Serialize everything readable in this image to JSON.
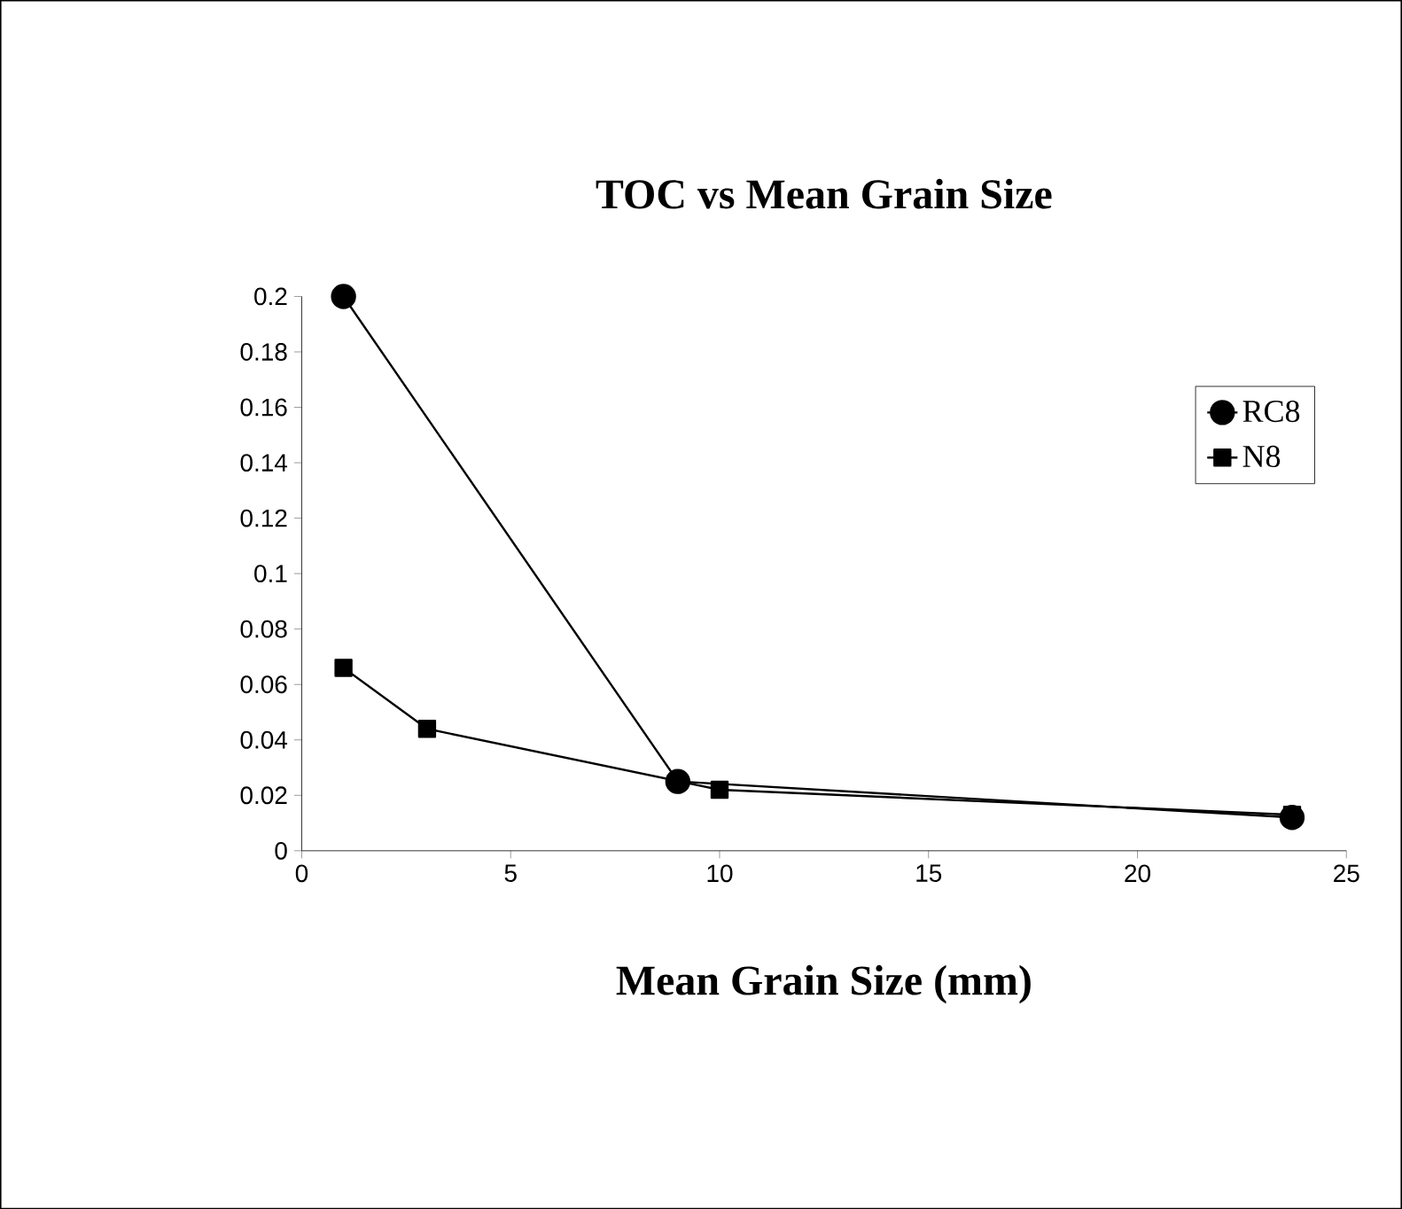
{
  "chart_data": {
    "type": "line",
    "title": "TOC vs Mean Grain Size",
    "xlabel": "Mean Grain Size (mm)",
    "xlim": [
      0,
      25
    ],
    "xticks": [
      0,
      5,
      10,
      15,
      20,
      25
    ],
    "ylim": [
      0,
      0.2
    ],
    "yticks": [
      0,
      0.02,
      0.04,
      0.06,
      0.08,
      0.1,
      0.12,
      0.14,
      0.16,
      0.18,
      0.2
    ],
    "grid": false,
    "legend": "right",
    "line_style": "solid",
    "series": [
      {
        "name": "RC8",
        "color": "#000000",
        "marker": "circle",
        "x": [
          1,
          9,
          23.7
        ],
        "values": [
          0.2,
          0.025,
          0.012
        ]
      },
      {
        "name": "N8",
        "color": "#000000",
        "marker": "square",
        "x": [
          1,
          3,
          10,
          23.7
        ],
        "values": [
          0.066,
          0.044,
          0.022,
          0.013
        ]
      }
    ]
  }
}
